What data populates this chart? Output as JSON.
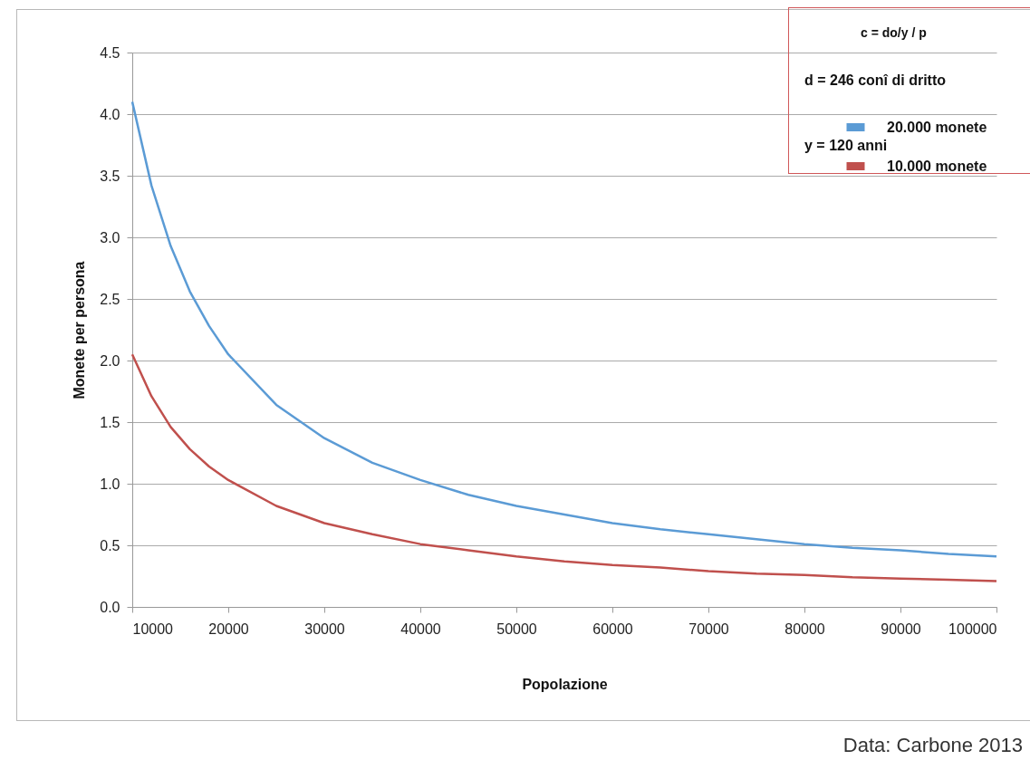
{
  "chart_data": {
    "type": "line",
    "xlabel": "Popolazione",
    "ylabel": "Monete per persona",
    "x": [
      10000,
      12000,
      14000,
      16000,
      18000,
      20000,
      25000,
      30000,
      35000,
      40000,
      45000,
      50000,
      55000,
      60000,
      65000,
      70000,
      75000,
      80000,
      85000,
      90000,
      95000,
      100000
    ],
    "series": [
      {
        "name": "20.000 monete",
        "color": "#5b9bd5",
        "values": [
          4.1,
          3.42,
          2.93,
          2.56,
          2.28,
          2.05,
          1.64,
          1.37,
          1.17,
          1.03,
          0.91,
          0.82,
          0.75,
          0.68,
          0.63,
          0.59,
          0.55,
          0.51,
          0.48,
          0.46,
          0.43,
          0.41
        ]
      },
      {
        "name": "10.000 monete",
        "color": "#c0504d",
        "values": [
          2.05,
          1.71,
          1.46,
          1.28,
          1.14,
          1.03,
          0.82,
          0.68,
          0.59,
          0.51,
          0.46,
          0.41,
          0.37,
          0.34,
          0.32,
          0.29,
          0.27,
          0.26,
          0.24,
          0.23,
          0.22,
          0.21
        ]
      }
    ],
    "xlim": [
      10000,
      100000
    ],
    "xticks": [
      10000,
      20000,
      30000,
      40000,
      50000,
      60000,
      70000,
      80000,
      90000,
      100000
    ],
    "ylim": [
      0,
      4.5
    ],
    "yticks": [
      {
        "value": 0,
        "label": "0.0"
      },
      {
        "value": 0.5,
        "label": "0.5"
      },
      {
        "value": 1,
        "label": "1.0"
      },
      {
        "value": 1.5,
        "label": "1.5"
      },
      {
        "value": 2,
        "label": "2.0"
      },
      {
        "value": 2.5,
        "label": "2.5"
      },
      {
        "value": 3,
        "label": "3.0"
      },
      {
        "value": 3.5,
        "label": "3.5"
      },
      {
        "value": 4,
        "label": "4.0"
      },
      {
        "value": 4.5,
        "label": "4.5"
      }
    ],
    "grid": "y",
    "legend": "top right",
    "marker": "none",
    "line_style": "solid",
    "annotations": [
      "c = do/y / p",
      "d = 246 conî di dritto",
      "y = 120 anni",
      "Data: Carbone 2013"
    ]
  }
}
